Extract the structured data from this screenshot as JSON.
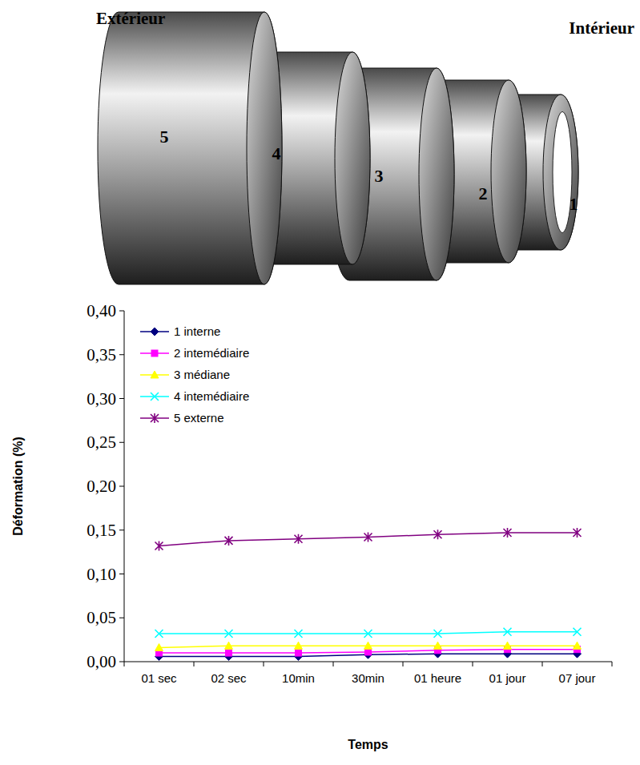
{
  "diagram": {
    "left_label": "Extérieur",
    "right_label": "Intérieur",
    "rings": [
      "5",
      "4",
      "3",
      "2",
      "1"
    ]
  },
  "chart_data": {
    "type": "line",
    "x_label": "Temps",
    "y_label": "Déformation (%)",
    "categories": [
      "01 sec",
      "02 sec",
      "10min",
      "30min",
      "01 heure",
      "01 jour",
      "07 jour"
    ],
    "ylim": [
      0,
      0.4
    ],
    "yticks": [
      {
        "value": 0,
        "label": "0,00"
      },
      {
        "value": 0.05,
        "label": "0,05"
      },
      {
        "value": 0.1,
        "label": "0,10"
      },
      {
        "value": 0.15,
        "label": "0,15"
      },
      {
        "value": 0.2,
        "label": "0,20"
      },
      {
        "value": 0.25,
        "label": "0,25"
      },
      {
        "value": 0.3,
        "label": "0,30"
      },
      {
        "value": 0.35,
        "label": "0,35"
      },
      {
        "value": 0.4,
        "label": "0,40"
      }
    ],
    "grid": false,
    "legend": "upper left",
    "series": [
      {
        "name": "1 interne",
        "color": "#000080",
        "marker": "diamond",
        "values": [
          0.006,
          0.006,
          0.006,
          0.008,
          0.009,
          0.009,
          0.009
        ]
      },
      {
        "name": "2 intemédiaire",
        "color": "#ff00ff",
        "marker": "square",
        "values": [
          0.01,
          0.01,
          0.01,
          0.011,
          0.013,
          0.014,
          0.014
        ]
      },
      {
        "name": "3 médiane",
        "color": "#ffff00",
        "marker": "triangle",
        "values": [
          0.016,
          0.018,
          0.018,
          0.018,
          0.018,
          0.018,
          0.018
        ]
      },
      {
        "name": "4 intemédiaire",
        "color": "#00ffff",
        "marker": "x",
        "values": [
          0.032,
          0.032,
          0.032,
          0.032,
          0.032,
          0.034,
          0.034
        ]
      },
      {
        "name": "5 externe",
        "color": "#800080",
        "marker": "star",
        "values": [
          0.132,
          0.138,
          0.14,
          0.142,
          0.145,
          0.147,
          0.147
        ]
      }
    ]
  }
}
